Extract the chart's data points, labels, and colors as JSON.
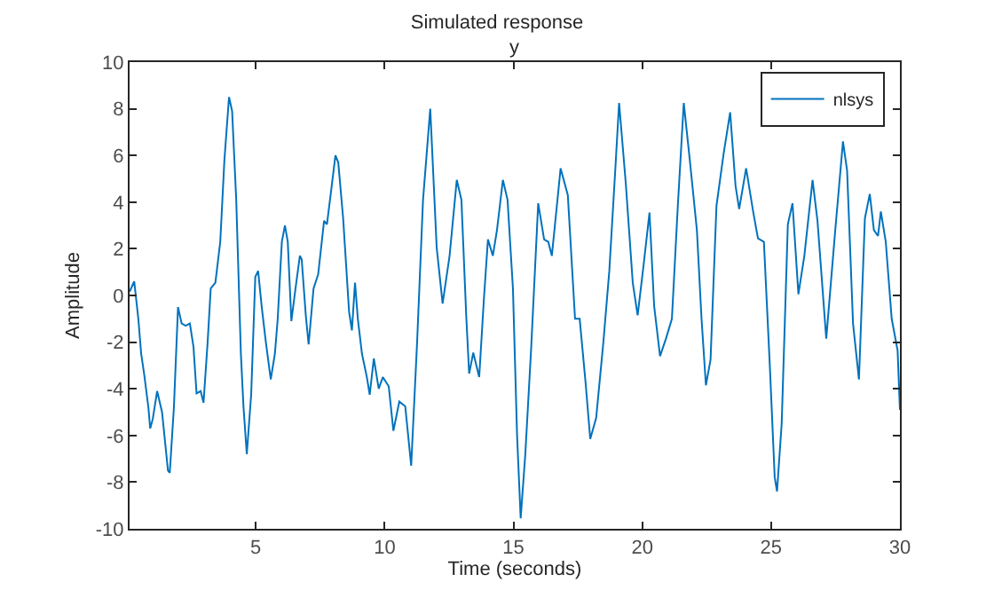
{
  "chart_data": {
    "type": "line",
    "title": "Simulated response",
    "subtitle": "y",
    "xlabel": "Time (seconds)",
    "ylabel": "Amplitude",
    "xlim": [
      0.1,
      30
    ],
    "xticks": [
      5,
      10,
      15,
      20,
      25,
      30
    ],
    "ylim": [
      -10,
      10
    ],
    "yticks": [
      -10,
      -8,
      -6,
      -4,
      -2,
      0,
      2,
      4,
      6,
      8,
      10
    ],
    "grid": false,
    "legend": "top right",
    "marker": "none",
    "line_style": "solid",
    "series": [
      {
        "name": "nlsys",
        "color": "#0072bd",
        "x": [
          0.1,
          0.28,
          0.44,
          0.55,
          0.67,
          0.83,
          0.9,
          1.0,
          1.17,
          1.36,
          1.59,
          1.66,
          1.82,
          1.98,
          2.12,
          2.28,
          2.44,
          2.58,
          2.7,
          2.86,
          2.97,
          3.13,
          3.25,
          3.43,
          3.62,
          3.78,
          3.96,
          4.08,
          4.24,
          4.42,
          4.52,
          4.65,
          4.82,
          4.98,
          5.09,
          5.23,
          5.39,
          5.58,
          5.74,
          5.85,
          6.01,
          6.13,
          6.24,
          6.38,
          6.54,
          6.71,
          6.78,
          6.94,
          7.05,
          7.24,
          7.42,
          7.65,
          7.76,
          7.93,
          8.09,
          8.2,
          8.39,
          8.62,
          8.73,
          8.85,
          8.96,
          9.12,
          9.31,
          9.42,
          9.58,
          9.77,
          9.93,
          10.16,
          10.34,
          10.57,
          10.8,
          11.03,
          11.26,
          11.49,
          11.77,
          12.02,
          12.25,
          12.52,
          12.8,
          12.98,
          13.17,
          13.28,
          13.44,
          13.67,
          13.85,
          14.01,
          14.2,
          14.36,
          14.59,
          14.77,
          14.98,
          15.14,
          15.28,
          15.46,
          15.69,
          15.96,
          16.19,
          16.35,
          16.49,
          16.83,
          17.11,
          17.39,
          17.57,
          17.8,
          17.98,
          18.21,
          18.49,
          18.72,
          18.95,
          19.1,
          19.36,
          19.63,
          19.82,
          20.05,
          20.28,
          20.46,
          20.69,
          20.92,
          21.15,
          21.38,
          21.61,
          21.84,
          22.12,
          22.3,
          22.47,
          22.65,
          22.88,
          23.16,
          23.41,
          23.62,
          23.76,
          24.03,
          24.31,
          24.49,
          24.72,
          24.95,
          25.14,
          25.23,
          25.41,
          25.65,
          25.83,
          26.06,
          26.29,
          26.61,
          26.8,
          27.14,
          27.49,
          27.79,
          27.95,
          28.18,
          28.41,
          28.64,
          28.83,
          28.99,
          29.15,
          29.26,
          29.45,
          29.68,
          29.91,
          30
        ],
        "values": [
          0.16,
          0.6,
          -1,
          -2.5,
          -3.4,
          -4.8,
          -5.7,
          -5.3,
          -4.1,
          -5,
          -7.5,
          -7.6,
          -4.8,
          -0.5,
          -1.2,
          -1.3,
          -1.2,
          -2.2,
          -4.2,
          -4.1,
          -4.6,
          -2,
          0.3,
          0.55,
          2.3,
          5.8,
          8.5,
          7.9,
          4.1,
          -2.5,
          -4.75,
          -6.8,
          -4.25,
          0.8,
          1.05,
          -0.5,
          -2,
          -3.6,
          -2.5,
          -1,
          2.3,
          3,
          2.3,
          -1.1,
          0.3,
          1.7,
          1.55,
          -0.85,
          -2.1,
          0.3,
          0.9,
          3.2,
          3.05,
          4.55,
          6,
          5.7,
          3.3,
          -0.7,
          -1.5,
          0.55,
          -1,
          -2.5,
          -3.5,
          -4.25,
          -2.7,
          -4,
          -3.5,
          -3.9,
          -5.8,
          -4.55,
          -4.75,
          -7.3,
          -2,
          4.1,
          8,
          2.05,
          -0.35,
          1.7,
          4.95,
          4.1,
          -0.95,
          -3.35,
          -2.45,
          -3.5,
          -0.2,
          2.4,
          1.7,
          2.8,
          4.95,
          4.1,
          0.3,
          -6,
          -9.55,
          -6.8,
          -2.2,
          3.95,
          2.4,
          2.3,
          1.7,
          5.45,
          4.3,
          -1,
          -1,
          -3.75,
          -6.15,
          -5.25,
          -2,
          1.05,
          5.35,
          8.25,
          4.8,
          0.55,
          -0.85,
          1.3,
          3.55,
          -0.45,
          -2.6,
          -1.85,
          -1,
          3.85,
          8.25,
          5.85,
          2.8,
          -1,
          -3.85,
          -2.75,
          3.85,
          6.1,
          7.85,
          4.7,
          3.7,
          5.45,
          3.55,
          2.45,
          2.3,
          -3,
          -7.8,
          -8.4,
          -5.5,
          3.05,
          3.95,
          0.05,
          1.7,
          4.95,
          3.2,
          -1.85,
          2.8,
          6.6,
          5.35,
          -1.2,
          -3.6,
          3.3,
          4.35,
          2.8,
          2.55,
          3.6,
          2.3,
          -1,
          -2.35,
          -4.9
        ]
      }
    ]
  }
}
